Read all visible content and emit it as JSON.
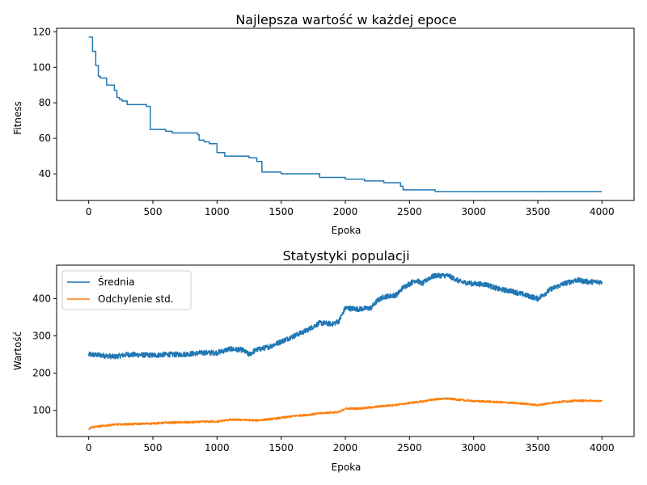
{
  "chart_data": [
    {
      "type": "line",
      "title": "Najlepsza wartość w każdej epoce",
      "xlabel": "Epoka",
      "ylabel": "Fitness",
      "xlim": [
        -250,
        4250
      ],
      "ylim": [
        25,
        122
      ],
      "xticks": [
        0,
        500,
        1000,
        1500,
        2000,
        2500,
        3000,
        3500,
        4000
      ],
      "yticks": [
        40,
        60,
        80,
        100,
        120
      ],
      "grid": false,
      "step": true,
      "series": [
        {
          "color": "#1f77b4",
          "x": [
            0,
            30,
            55,
            75,
            90,
            140,
            200,
            220,
            240,
            260,
            300,
            450,
            480,
            600,
            650,
            850,
            860,
            900,
            940,
            1000,
            1060,
            1100,
            1250,
            1310,
            1350,
            1500,
            1600,
            1800,
            1900,
            2000,
            2150,
            2300,
            2430,
            2450,
            2700,
            2800,
            3000,
            3100,
            3150,
            3500,
            3850,
            3900,
            4000
          ],
          "values": [
            117,
            109,
            101,
            95,
            94,
            90,
            87,
            83,
            82,
            81,
            79,
            78,
            65,
            64,
            63,
            62,
            59,
            58,
            57,
            52,
            50,
            50,
            49,
            47,
            41,
            40,
            40,
            38,
            38,
            37,
            36,
            35,
            33,
            31,
            30,
            30,
            30,
            30,
            30,
            30,
            30,
            30,
            30
          ]
        }
      ]
    },
    {
      "type": "line",
      "title": "Statystyki populacji",
      "xlabel": "Epoka",
      "ylabel": "Wartość",
      "xlim": [
        -250,
        4250
      ],
      "ylim": [
        30,
        490
      ],
      "xticks": [
        0,
        500,
        1000,
        1500,
        2000,
        2500,
        3000,
        3500,
        4000
      ],
      "yticks": [
        100,
        200,
        300,
        400
      ],
      "grid": false,
      "legend": "top-left",
      "series": [
        {
          "name": "Średnia",
          "color": "#1f77b4",
          "x": [
            0,
            100,
            200,
            300,
            400,
            500,
            600,
            700,
            800,
            900,
            1000,
            1100,
            1200,
            1250,
            1300,
            1400,
            1500,
            1600,
            1700,
            1750,
            1800,
            1900,
            1950,
            2000,
            2100,
            2200,
            2250,
            2300,
            2400,
            2450,
            2500,
            2550,
            2600,
            2650,
            2700,
            2800,
            2900,
            3000,
            3100,
            3200,
            3300,
            3400,
            3500,
            3600,
            3700,
            3800,
            3900,
            4000
          ],
          "values": [
            250,
            248,
            244,
            250,
            249,
            248,
            250,
            250,
            252,
            255,
            255,
            265,
            262,
            250,
            262,
            270,
            285,
            300,
            315,
            325,
            335,
            332,
            340,
            375,
            372,
            375,
            395,
            405,
            410,
            430,
            440,
            450,
            440,
            455,
            462,
            462,
            445,
            440,
            438,
            425,
            420,
            410,
            400,
            425,
            440,
            450,
            445,
            445
          ],
          "noise": 7
        },
        {
          "name": "Odchylenie std.",
          "color": "#ff7f0e",
          "x": [
            0,
            20,
            100,
            200,
            300,
            500,
            600,
            700,
            800,
            900,
            1000,
            1100,
            1200,
            1300,
            1400,
            1500,
            1600,
            1700,
            1800,
            1900,
            1950,
            2000,
            2100,
            2200,
            2300,
            2400,
            2500,
            2600,
            2700,
            2800,
            2900,
            3000,
            3100,
            3200,
            3300,
            3400,
            3500,
            3600,
            3700,
            3800,
            3900,
            4000
          ],
          "values": [
            50,
            55,
            58,
            62,
            63,
            65,
            67,
            68,
            68,
            70,
            70,
            75,
            75,
            73,
            76,
            80,
            85,
            88,
            92,
            95,
            95,
            105,
            105,
            108,
            112,
            115,
            120,
            124,
            130,
            132,
            128,
            125,
            124,
            122,
            120,
            118,
            114,
            120,
            124,
            126,
            126,
            125
          ],
          "noise": 2.5
        }
      ]
    }
  ]
}
